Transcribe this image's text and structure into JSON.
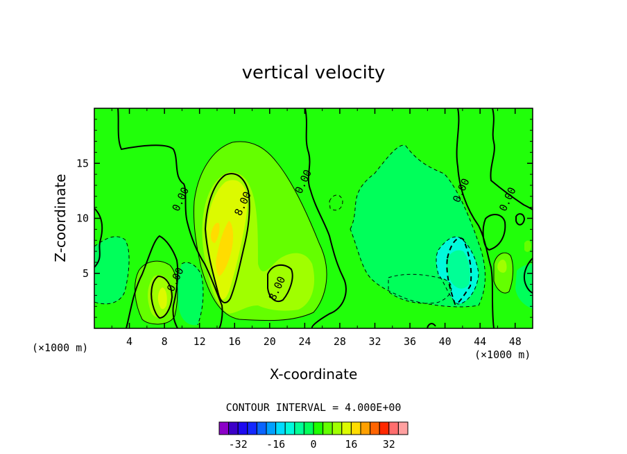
{
  "chart_data": {
    "type": "contour",
    "title": "vertical velocity",
    "xlabel": "X-coordinate",
    "ylabel": "Z-coordinate",
    "x_unit": "(×1000 m)",
    "y_unit": "(×1000 m)",
    "xlim": [
      0,
      50
    ],
    "ylim": [
      0,
      20
    ],
    "x_ticks": [
      4,
      8,
      12,
      16,
      20,
      24,
      28,
      32,
      36,
      40,
      44,
      48
    ],
    "y_ticks": [
      5,
      10,
      15
    ],
    "contour_interval_text": "CONTOUR INTERVAL = 4.000E+00",
    "contour_labels": [
      {
        "text": "0.00",
        "x": 10.2,
        "y": 11.6
      },
      {
        "text": "0.00",
        "x": 9.6,
        "y": 4.3
      },
      {
        "text": "0.00",
        "x": 24.2,
        "y": 13.2
      },
      {
        "text": "0.00",
        "x": 42.2,
        "y": 12.4
      },
      {
        "text": "0.00",
        "x": 47.5,
        "y": 11.6
      },
      {
        "text": "8.00",
        "x": 17.3,
        "y": 11.2
      },
      {
        "text": "8.00",
        "x": 21.2,
        "y": 3.5
      }
    ],
    "colorbar": {
      "levels": [
        -36,
        -32,
        -28,
        -24,
        -20,
        -16,
        -12,
        -8,
        -4,
        0,
        4,
        8,
        12,
        16,
        20,
        24,
        28,
        32,
        36
      ],
      "tick_labels": [
        "-32",
        "-16",
        "0",
        "16",
        "32"
      ],
      "tick_values": [
        -32,
        -16,
        0,
        16,
        32
      ],
      "colors": [
        "#8c00c8",
        "#3c00c8",
        "#1e0af0",
        "#1428ff",
        "#0a64ff",
        "#00a0ff",
        "#00dcff",
        "#00fadc",
        "#00ff96",
        "#00ff5a",
        "#1eff00",
        "#64ff00",
        "#a0ff00",
        "#dcfa00",
        "#ffdc00",
        "#ffa000",
        "#ff6400",
        "#ff2800",
        "#ff6e6e",
        "#ffa0a0"
      ]
    }
  }
}
